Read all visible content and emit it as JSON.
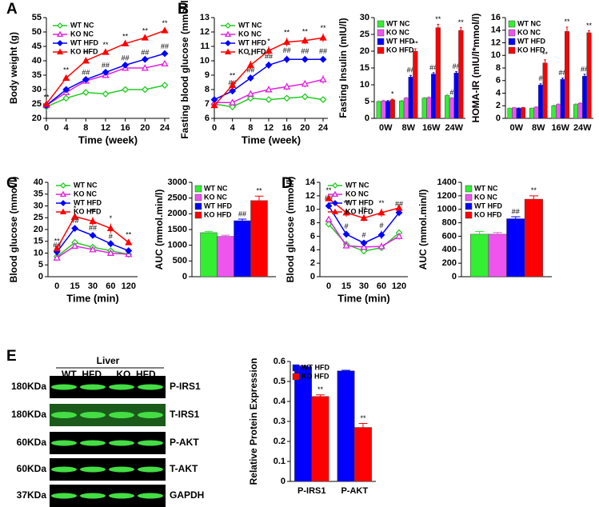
{
  "chart_data": [
    {
      "type": "line",
      "panel": "A",
      "xlabel": "Time (week)",
      "ylabel": "Body weight (g)",
      "x": [
        0,
        4,
        8,
        12,
        16,
        20,
        24
      ],
      "xlim": [
        0,
        24
      ],
      "xticks": [
        0,
        4,
        8,
        12,
        16,
        20,
        24
      ],
      "ylim": [
        20,
        55
      ],
      "yticks": [
        20,
        25,
        30,
        35,
        40,
        45,
        50,
        55
      ],
      "series": [
        {
          "name": "WT NC",
          "color": "#22cc22",
          "marker": "diamond",
          "filled": false,
          "values": [
            24,
            27,
            29,
            28.5,
            30,
            30,
            31.5
          ],
          "errors": [
            0.4,
            0.4,
            0.4,
            0.4,
            0.4,
            0.4,
            0.4
          ]
        },
        {
          "name": "KO NC",
          "color": "#e020e0",
          "marker": "triangle",
          "filled": false,
          "values": [
            24.5,
            29,
            33,
            35,
            37.5,
            37.5,
            39
          ],
          "errors": [
            0.4,
            0.5,
            0.6,
            0.6,
            0.7,
            0.7,
            0.8
          ]
        },
        {
          "name": "WT HFD",
          "color": "#0000ff",
          "marker": "diamond",
          "filled": true,
          "values": [
            24.5,
            30,
            33.5,
            36,
            38.5,
            40.5,
            42.5
          ],
          "errors": [
            0.4,
            0.5,
            0.6,
            0.6,
            0.6,
            0.6,
            0.6
          ],
          "sig": [
            null,
            null,
            "##",
            "##",
            "##",
            "##",
            "##"
          ]
        },
        {
          "name": "KO HFD",
          "color": "#ff0000",
          "marker": "triangle",
          "filled": true,
          "values": [
            25,
            34,
            40,
            43,
            46,
            48,
            50.5
          ],
          "errors": [
            0.5,
            0.9,
            0.7,
            0.7,
            0.7,
            0.6,
            0.7
          ],
          "sig": [
            "**",
            "**",
            "**",
            "**",
            "**",
            "**",
            "**"
          ]
        }
      ]
    },
    {
      "type": "line",
      "panel": "B",
      "xlabel": "Time (week)",
      "ylabel": "Fasting blood glucose (mmol/l)",
      "x": [
        0,
        4,
        8,
        12,
        16,
        20,
        24
      ],
      "xlim": [
        0,
        24
      ],
      "xticks": [
        0,
        4,
        8,
        12,
        16,
        20,
        24
      ],
      "ylim": [
        6,
        13
      ],
      "yticks": [
        6,
        7,
        8,
        9,
        10,
        11,
        12,
        13
      ],
      "series": [
        {
          "name": "WT NC",
          "color": "#22cc22",
          "marker": "diamond",
          "filled": false,
          "values": [
            7.0,
            6.8,
            7.4,
            7.3,
            7.4,
            7.5,
            7.3
          ],
          "errors": [
            0.15,
            0.2,
            0.2,
            0.15,
            0.15,
            0.15,
            0.15
          ]
        },
        {
          "name": "KO NC",
          "color": "#e020e0",
          "marker": "triangle",
          "filled": false,
          "values": [
            7.1,
            7.1,
            7.7,
            8.0,
            8.2,
            8.4,
            8.7
          ],
          "errors": [
            0.15,
            0.2,
            0.2,
            0.2,
            0.25,
            0.25,
            0.3
          ]
        },
        {
          "name": "WT HFD",
          "color": "#0000ff",
          "marker": "diamond",
          "filled": true,
          "values": [
            7.3,
            7.9,
            8.8,
            9.7,
            10.1,
            10.1,
            10.1
          ],
          "errors": [
            0.15,
            0.2,
            0.2,
            0.25,
            0.25,
            0.2,
            0.2
          ],
          "sig": [
            null,
            "##",
            "##",
            "##",
            "##",
            "##",
            "##"
          ]
        },
        {
          "name": "KO HFD",
          "color": "#ff0000",
          "marker": "triangle",
          "filled": true,
          "values": [
            6.9,
            8.3,
            9.7,
            10.7,
            11.3,
            11.4,
            11.6
          ],
          "errors": [
            0.15,
            0.3,
            0.3,
            0.3,
            0.3,
            0.25,
            0.3
          ],
          "sig": [
            null,
            "**",
            "**",
            "*",
            "**",
            "**",
            "**"
          ]
        }
      ]
    },
    {
      "type": "bar",
      "ylabel": "Fasting Insulin (mIU/l)",
      "categories": [
        "0W",
        "8W",
        "16W",
        "24W"
      ],
      "ylim": [
        0,
        30
      ],
      "yticks": [
        0,
        5,
        10,
        15,
        20,
        25,
        30
      ],
      "series": [
        {
          "name": "WT NC",
          "color": "#33ee33",
          "values": [
            5,
            5.2,
            6,
            6.8
          ],
          "errors": [
            0.2,
            0.2,
            0.2,
            0.3
          ]
        },
        {
          "name": "KO NC",
          "color": "#ee55ee",
          "values": [
            5.2,
            6,
            6.2,
            6
          ],
          "errors": [
            0.2,
            0.2,
            0.2,
            0.2
          ],
          "sig": [
            null,
            null,
            null,
            "#"
          ]
        },
        {
          "name": "WT HFD",
          "color": "#0000ff",
          "values": [
            5.1,
            12.3,
            13.2,
            13.5
          ],
          "errors": [
            0.2,
            0.5,
            0.4,
            0.4
          ],
          "sig": [
            null,
            "##",
            "##",
            "##"
          ]
        },
        {
          "name": "KO HFD",
          "color": "#ff0000",
          "values": [
            5.5,
            20,
            27,
            26.2
          ],
          "errors": [
            0.2,
            0.7,
            1.0,
            0.8
          ],
          "sig": [
            "*",
            "**",
            "**",
            "**"
          ]
        }
      ]
    },
    {
      "type": "bar",
      "ylabel": "HOMA-IR (mIU/l*mmol/l)",
      "categories": [
        "0W",
        "8W",
        "16W",
        "24W"
      ],
      "ylim": [
        0,
        16
      ],
      "yticks": [
        0,
        2,
        4,
        6,
        8,
        10,
        12,
        14,
        16
      ],
      "series": [
        {
          "name": "WT NC",
          "color": "#33ee33",
          "values": [
            1.6,
            1.6,
            2.0,
            2.2
          ],
          "errors": [
            0.05,
            0.05,
            0.1,
            0.1
          ]
        },
        {
          "name": "KO NC",
          "color": "#ee55ee",
          "values": [
            1.7,
            1.8,
            2.2,
            2.4
          ],
          "errors": [
            0.05,
            0.05,
            0.1,
            0.1
          ]
        },
        {
          "name": "WT HFD",
          "color": "#0000ff",
          "values": [
            1.6,
            5.3,
            6.2,
            6.7
          ],
          "errors": [
            0.05,
            0.2,
            0.2,
            0.3
          ],
          "sig": [
            null,
            "#",
            "##",
            "##"
          ]
        },
        {
          "name": "KO HFD",
          "color": "#ff0000",
          "values": [
            1.7,
            8.8,
            13.8,
            13.6
          ],
          "errors": [
            0.05,
            0.5,
            0.7,
            0.3
          ],
          "sig": [
            null,
            "**",
            "**",
            "**"
          ]
        }
      ]
    },
    {
      "type": "line",
      "panel": "C",
      "xlabel": "Time (min)",
      "ylabel": "Blood glucose (mmol/l)",
      "categories": [
        "0",
        "15",
        "30",
        "60",
        "120"
      ],
      "ylim": [
        0,
        40
      ],
      "yticks": [
        0,
        5,
        10,
        15,
        20,
        25,
        30,
        35,
        40
      ],
      "series": [
        {
          "name": "WT NC",
          "color": "#22cc22",
          "marker": "diamond",
          "filled": false,
          "values": [
            8.5,
            14.5,
            12.5,
            11,
            9.5
          ],
          "errors": [
            0.5,
            0.8,
            0.8,
            0.7,
            0.6
          ]
        },
        {
          "name": "KO NC",
          "color": "#e020e0",
          "marker": "triangle",
          "filled": false,
          "values": [
            8,
            13,
            11.5,
            10,
            9.5
          ],
          "errors": [
            0.5,
            0.8,
            0.7,
            0.6,
            0.6
          ]
        },
        {
          "name": "WT HFD",
          "color": "#0000ff",
          "marker": "diamond",
          "filled": true,
          "values": [
            10.5,
            20.5,
            17.5,
            14,
            11
          ],
          "errors": [
            0.6,
            1.0,
            1.0,
            0.9,
            0.7
          ],
          "sig": [
            "##",
            "##",
            "##",
            "#",
            null
          ]
        },
        {
          "name": "KO HFD",
          "color": "#ff0000",
          "marker": "triangle",
          "filled": true,
          "values": [
            12,
            25.5,
            23.5,
            20.5,
            14.5
          ],
          "errors": [
            0.8,
            1.2,
            1.8,
            2.0,
            1.0
          ],
          "sig": [
            "**",
            "*",
            "**",
            "*",
            "**"
          ]
        }
      ]
    },
    {
      "type": "bar",
      "ylabel": "AUC (mmol.min/l)",
      "categories": [
        null
      ],
      "ylim": [
        0,
        3000
      ],
      "yticks": [
        0,
        500,
        1000,
        1500,
        2000,
        2500,
        3000
      ],
      "series": [
        {
          "name": "WT NC",
          "color": "#33ee33",
          "values": [
            1400
          ],
          "errors": [
            40
          ]
        },
        {
          "name": "KO NC",
          "color": "#ee55ee",
          "values": [
            1280
          ],
          "errors": [
            40
          ]
        },
        {
          "name": "WT HFD",
          "color": "#0000ff",
          "values": [
            1780
          ],
          "errors": [
            50
          ],
          "sig": [
            "##"
          ]
        },
        {
          "name": "KO HFD",
          "color": "#ff0000",
          "values": [
            2420
          ],
          "errors": [
            140
          ],
          "sig": [
            "**"
          ]
        }
      ]
    },
    {
      "type": "line",
      "panel": "D",
      "xlabel": "Time (min)",
      "ylabel": "Blood glucose (mmol/l)",
      "categories": [
        "0",
        "15",
        "30",
        "60",
        "120"
      ],
      "ylim": [
        0,
        14
      ],
      "yticks": [
        0,
        2,
        4,
        6,
        8,
        10,
        12,
        14
      ],
      "series": [
        {
          "name": "WT NC",
          "color": "#22cc22",
          "marker": "diamond",
          "filled": false,
          "values": [
            7.8,
            4.8,
            3.8,
            4.3,
            6.5
          ],
          "errors": [
            0.3,
            0.3,
            0.3,
            0.4,
            0.5
          ]
        },
        {
          "name": "KO NC",
          "color": "#e020e0",
          "marker": "triangle",
          "filled": false,
          "values": [
            8.5,
            4.6,
            4.4,
            4.5,
            6
          ],
          "errors": [
            0.3,
            0.3,
            0.3,
            0.4,
            0.5
          ]
        },
        {
          "name": "WT HFD",
          "color": "#0000ff",
          "marker": "diamond",
          "filled": true,
          "values": [
            10.5,
            6.3,
            5,
            6.2,
            9.5
          ],
          "errors": [
            0.4,
            0.4,
            0.4,
            0.6,
            0.5
          ],
          "sig": [
            "##",
            "#",
            "#",
            "#",
            "##"
          ]
        },
        {
          "name": "KO HFD",
          "color": "#ff0000",
          "marker": "triangle",
          "filled": true,
          "values": [
            11.6,
            9.5,
            8.7,
            9.5,
            10.2
          ],
          "errors": [
            0.4,
            0.6,
            0.5,
            0.6,
            0.4
          ],
          "sig": [
            "**",
            "**",
            "**",
            "**",
            null
          ]
        }
      ]
    },
    {
      "type": "bar",
      "ylabel": "AUC (mmol.min/l)",
      "categories": [
        null
      ],
      "ylim": [
        0,
        1400
      ],
      "yticks": [
        0,
        200,
        400,
        600,
        800,
        1000,
        1200,
        1400
      ],
      "series": [
        {
          "name": "WT NC",
          "color": "#33ee33",
          "values": [
            630
          ],
          "errors": [
            40
          ]
        },
        {
          "name": "KO NC",
          "color": "#ee55ee",
          "values": [
            630
          ],
          "errors": [
            25
          ]
        },
        {
          "name": "WT HFD",
          "color": "#0000ff",
          "values": [
            860
          ],
          "errors": [
            30
          ],
          "sig": [
            "##"
          ]
        },
        {
          "name": "KO HFD",
          "color": "#ff0000",
          "values": [
            1150
          ],
          "errors": [
            50
          ],
          "sig": [
            "**"
          ]
        }
      ]
    },
    {
      "type": "bar",
      "panel": "E",
      "ylabel": "Relative Protein Expression",
      "categories": [
        "P-IRS1",
        "P-AKT"
      ],
      "ylim": [
        0,
        0.6
      ],
      "yticks": [
        0,
        0.1,
        0.2,
        0.3,
        0.4,
        0.5,
        0.6
      ],
      "series": [
        {
          "name": "WT HFD",
          "color": "#0000ff",
          "values": [
            0.575,
            0.553
          ],
          "errors": [
            0.004,
            0.003
          ]
        },
        {
          "name": "KO HFD",
          "color": "#ff0000",
          "values": [
            0.425,
            0.27
          ],
          "errors": [
            0.008,
            0.02
          ],
          "sig": [
            "**",
            "**"
          ]
        }
      ]
    }
  ],
  "blot": {
    "tissue": "Liver",
    "groups": [
      "WT  HFD",
      "KO  HFD"
    ],
    "rows": [
      {
        "size": "180KDa",
        "label": "P-IRS1"
      },
      {
        "size": "180KDa",
        "label": "T-IRS1"
      },
      {
        "size": "60KDa",
        "label": "P-AKT"
      },
      {
        "size": "60KDa",
        "label": "T-AKT"
      },
      {
        "size": "37KDa",
        "label": "GAPDH"
      }
    ]
  }
}
